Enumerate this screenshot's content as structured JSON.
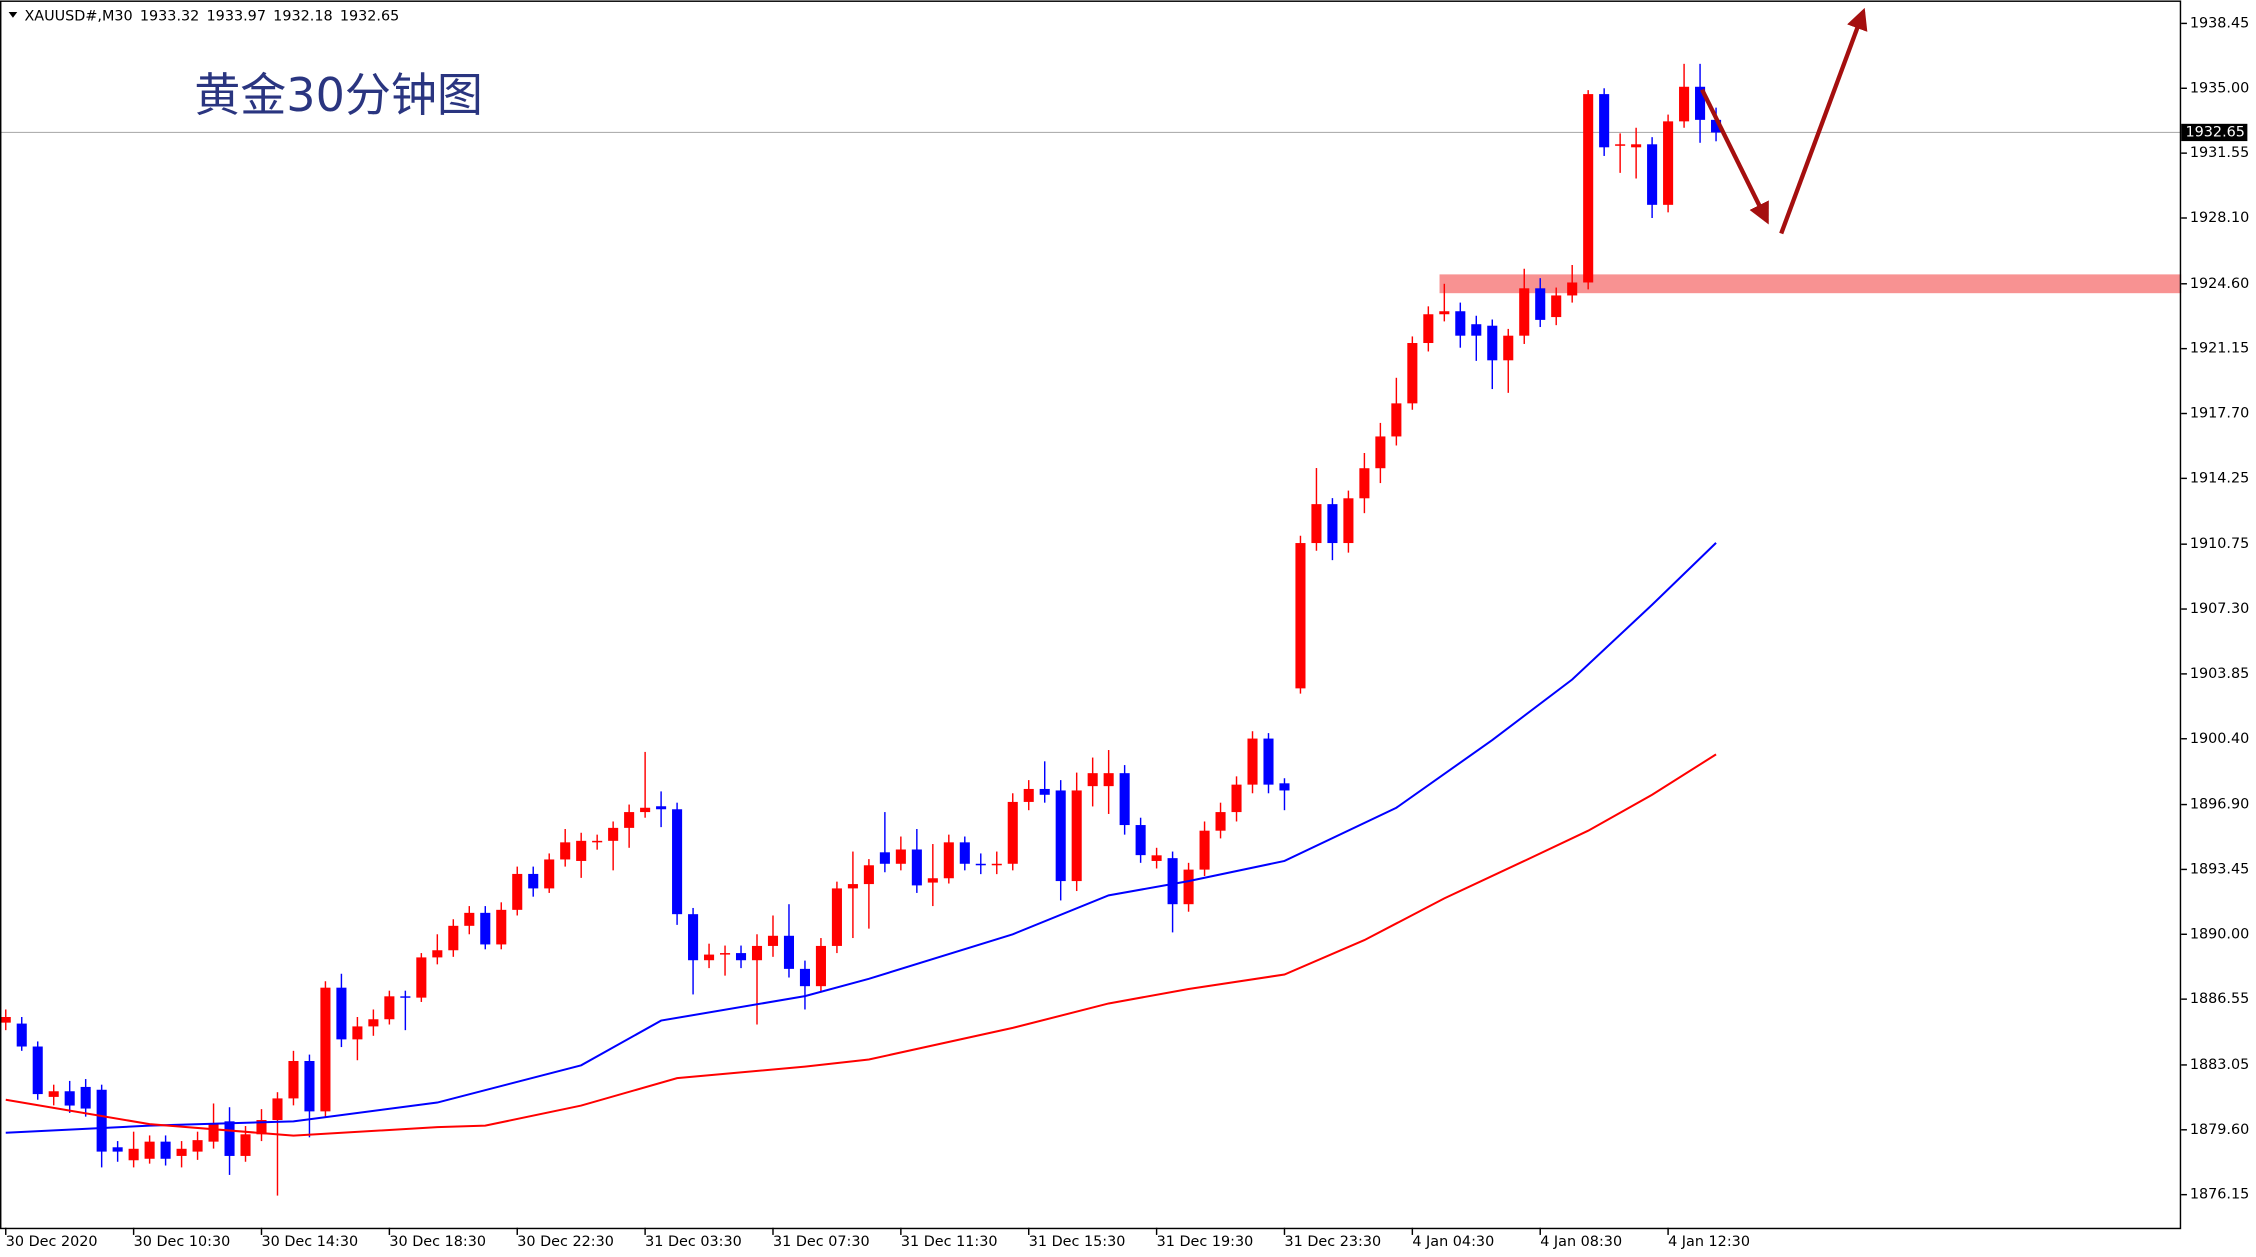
{
  "chart_data": {
    "type": "candlestick",
    "symbol": "XAUUSD#,M30",
    "title": "黄金30分钟图",
    "up_color": "#ff0000",
    "down_color": "#0000ff",
    "xlim": [
      -0.36,
      136.1
    ],
    "ylim": [
      1874.39,
      1939.67
    ],
    "xticks": [
      {
        "value": 0,
        "label": "30 Dec 2020"
      },
      {
        "value": 8,
        "label": "30 Dec 10:30"
      },
      {
        "value": 16,
        "label": "30 Dec 14:30"
      },
      {
        "value": 24,
        "label": "30 Dec 18:30"
      },
      {
        "value": 32,
        "label": "30 Dec 22:30"
      },
      {
        "value": 40,
        "label": "31 Dec 03:30"
      },
      {
        "value": 48,
        "label": "31 Dec 07:30"
      },
      {
        "value": 56,
        "label": "31 Dec 11:30"
      },
      {
        "value": 64,
        "label": "31 Dec 15:30"
      },
      {
        "value": 72,
        "label": "31 Dec 19:30"
      },
      {
        "value": 80,
        "label": "31 Dec 23:30"
      },
      {
        "value": 88,
        "label": "4 Jan 04:30"
      },
      {
        "value": 96,
        "label": "4 Jan 08:30"
      },
      {
        "value": 104,
        "label": "4 Jan 12:30"
      }
    ],
    "yticks": [
      1938.45,
      {
        "value": 1935,
        "label": "1935.00"
      },
      1931.55,
      {
        "value": 1928.1,
        "label": "1928.10"
      },
      {
        "value": 1924.6,
        "label": "1924.60"
      },
      1921.15,
      {
        "value": 1917.7,
        "label": "1917.70"
      },
      1914.25,
      1910.75,
      {
        "value": 1907.3,
        "label": "1907.30"
      },
      1903.85,
      {
        "value": 1900.4,
        "label": "1900.40"
      },
      {
        "value": 1896.9,
        "label": "1896.90"
      },
      1893.45,
      {
        "value": 1890,
        "label": "1890.00"
      },
      1886.55,
      1883.05,
      {
        "value": 1879.6,
        "label": "1879.60"
      },
      1876.15
    ],
    "open": [
      1885.3,
      1885.25,
      1884.03,
      1881.35,
      1881.65,
      1881.88,
      1881.73,
      1878.67,
      1877.98,
      1878.06,
      1878.97,
      1878.21,
      1878.44,
      1878.97,
      1880.05,
      1878.21,
      1879.36,
      1880.12,
      1881.27,
      1883.26,
      1880.58,
      1887.16,
      1884.41,
      1885.1,
      1885.48,
      1886.7,
      1886.63,
      1888.77,
      1889.15,
      1890.45,
      1891.14,
      1889.46,
      1891.3,
      1893.21,
      1892.44,
      1893.98,
      1893.9,
      1894.89,
      1894.97,
      1895.66,
      1896.5,
      1896.81,
      1896.65,
      1891.07,
      1888.62,
      1888.92,
      1889.0,
      1888.62,
      1889.38,
      1889.92,
      1888.16,
      1887.24,
      1889.38,
      1892.44,
      1892.67,
      1894.36,
      1893.75,
      1894.51,
      1892.75,
      1892.98,
      1894.89,
      1893.75,
      1893.67,
      1893.75,
      1897.04,
      1897.73,
      1897.65,
      1892.83,
      1897.88,
      1897.88,
      1898.57,
      1895.81,
      1893.9,
      1894.05,
      1891.6,
      1893.44,
      1895.51,
      1896.5,
      1897.96,
      1900.41,
      1898.03,
      1903.08,
      1910.81,
      1912.88,
      1910.81,
      1913.19,
      1914.79,
      1916.48,
      1918.24,
      1921.45,
      1922.98,
      1923.14,
      1922.45,
      1922.37,
      1920.53,
      1921.84,
      1924.36,
      1922.83,
      1923.98,
      1924.67,
      1934.69,
      1931.94,
      1931.86,
      1932.02,
      1928.8,
      1933.24,
      1935.08,
      1933.32
    ],
    "high": [
      1886.0,
      1885.6,
      1884.3,
      1882.0,
      1882.2,
      1882.3,
      1882.0,
      1879.0,
      1879.5,
      1879.3,
      1879.3,
      1879.0,
      1879.5,
      1881.0,
      1880.8,
      1879.8,
      1880.7,
      1881.6,
      1883.8,
      1883.6,
      1887.5,
      1887.9,
      1885.6,
      1886.0,
      1887.0,
      1887.0,
      1889.0,
      1890.0,
      1890.8,
      1891.5,
      1891.5,
      1891.7,
      1893.6,
      1893.6,
      1894.3,
      1895.6,
      1895.4,
      1895.3,
      1896.0,
      1896.9,
      1899.7,
      1897.6,
      1897.0,
      1891.4,
      1889.5,
      1889.4,
      1889.4,
      1890.0,
      1891.0,
      1891.6,
      1888.6,
      1889.8,
      1892.8,
      1894.4,
      1894.0,
      1896.5,
      1895.2,
      1895.6,
      1894.8,
      1895.3,
      1895.2,
      1894.3,
      1894.4,
      1897.5,
      1898.2,
      1899.2,
      1898.2,
      1898.6,
      1899.4,
      1899.8,
      1899.0,
      1896.2,
      1894.6,
      1894.4,
      1893.8,
      1896.0,
      1897.0,
      1898.4,
      1900.8,
      1900.7,
      1898.3,
      1911.2,
      1914.8,
      1913.2,
      1913.6,
      1915.6,
      1917.2,
      1919.6,
      1921.8,
      1923.4,
      1924.6,
      1923.6,
      1922.9,
      1922.7,
      1922.2,
      1925.4,
      1924.9,
      1924.4,
      1925.6,
      1934.9,
      1935.0,
      1932.6,
      1932.9,
      1932.4,
      1933.6,
      1936.3,
      1936.3,
      1933.97
    ],
    "low": [
      1884.9,
      1883.8,
      1881.2,
      1880.9,
      1880.5,
      1880.3,
      1877.6,
      1877.9,
      1877.6,
      1877.8,
      1877.7,
      1877.6,
      1878.0,
      1878.6,
      1877.2,
      1877.9,
      1879.0,
      1876.1,
      1880.9,
      1879.2,
      1880.3,
      1884.0,
      1883.3,
      1884.6,
      1885.2,
      1884.9,
      1886.4,
      1888.4,
      1888.8,
      1890.0,
      1889.2,
      1889.2,
      1891.0,
      1892.0,
      1892.2,
      1893.6,
      1893.0,
      1894.5,
      1893.4,
      1894.6,
      1896.2,
      1895.7,
      1890.5,
      1886.8,
      1888.2,
      1887.8,
      1888.2,
      1885.2,
      1888.8,
      1887.7,
      1886.0,
      1886.9,
      1889.0,
      1889.8,
      1890.3,
      1893.3,
      1893.4,
      1892.2,
      1891.5,
      1892.7,
      1893.4,
      1893.2,
      1893.2,
      1893.4,
      1896.6,
      1897.0,
      1891.8,
      1892.3,
      1896.8,
      1896.4,
      1895.3,
      1893.8,
      1893.5,
      1890.1,
      1891.2,
      1893.1,
      1895.1,
      1896.0,
      1897.5,
      1897.5,
      1896.6,
      1902.8,
      1910.4,
      1909.9,
      1910.3,
      1912.4,
      1914.0,
      1916.0,
      1917.9,
      1921.0,
      1922.6,
      1921.2,
      1920.5,
      1919.0,
      1918.8,
      1921.4,
      1922.3,
      1922.4,
      1923.6,
      1924.3,
      1931.4,
      1930.5,
      1930.2,
      1928.1,
      1928.4,
      1932.9,
      1932.1,
      1932.18
    ],
    "close": [
      1885.6,
      1884.03,
      1881.5,
      1881.65,
      1880.89,
      1880.73,
      1878.44,
      1878.44,
      1878.59,
      1878.97,
      1878.06,
      1878.59,
      1879.05,
      1879.89,
      1878.21,
      1879.36,
      1880.12,
      1881.27,
      1883.26,
      1880.58,
      1887.16,
      1884.41,
      1885.1,
      1885.48,
      1886.7,
      1886.63,
      1888.77,
      1889.15,
      1890.45,
      1891.14,
      1889.46,
      1891.3,
      1893.21,
      1892.44,
      1893.98,
      1894.89,
      1894.97,
      1894.97,
      1895.66,
      1896.5,
      1896.73,
      1896.65,
      1891.07,
      1888.62,
      1888.92,
      1889.0,
      1888.62,
      1889.38,
      1889.92,
      1888.16,
      1887.24,
      1889.38,
      1892.44,
      1892.67,
      1893.67,
      1893.75,
      1894.51,
      1892.6,
      1892.98,
      1894.89,
      1893.75,
      1893.67,
      1893.75,
      1897.04,
      1897.73,
      1897.42,
      1892.83,
      1897.65,
      1898.57,
      1898.57,
      1895.81,
      1894.21,
      1894.2,
      1891.6,
      1893.44,
      1895.51,
      1896.5,
      1897.96,
      1900.41,
      1897.96,
      1897.65,
      1910.81,
      1912.88,
      1910.81,
      1913.19,
      1914.79,
      1916.48,
      1918.24,
      1921.45,
      1922.98,
      1923.14,
      1921.84,
      1921.84,
      1920.53,
      1921.84,
      1924.36,
      1922.68,
      1923.98,
      1924.67,
      1934.69,
      1931.86,
      1932.02,
      1932.02,
      1928.8,
      1933.24,
      1935.08,
      1933.32,
      1932.65
    ],
    "moving_averages": [
      {
        "color": "#0000ff",
        "x": [
          0,
          9,
          18,
          27,
          36,
          41,
          50,
          54,
          63,
          69,
          74,
          80,
          87,
          93,
          98,
          103,
          107
        ],
        "values": [
          1879.44,
          1879.82,
          1880.05,
          1881.05,
          1883.03,
          1885.41,
          1886.71,
          1887.63,
          1890.0,
          1892.07,
          1892.83,
          1893.9,
          1896.73,
          1900.33,
          1903.55,
          1907.53,
          1910.82
        ]
      },
      {
        "color": "#ff0000",
        "x": [
          0,
          9,
          18,
          27,
          30,
          36,
          42,
          50,
          54,
          63,
          69,
          74,
          80,
          85,
          90,
          95,
          99,
          103,
          107
        ],
        "values": [
          1881.2,
          1879.9,
          1879.29,
          1879.74,
          1879.82,
          1880.89,
          1882.35,
          1882.96,
          1883.34,
          1885.02,
          1886.32,
          1887.09,
          1887.86,
          1889.69,
          1891.91,
          1893.9,
          1895.51,
          1897.42,
          1899.57
        ]
      }
    ],
    "support_zone": {
      "from": 1924.1,
      "to": 1925.1,
      "start": 89.7,
      "color": "#f77f7f"
    }
  }
}
